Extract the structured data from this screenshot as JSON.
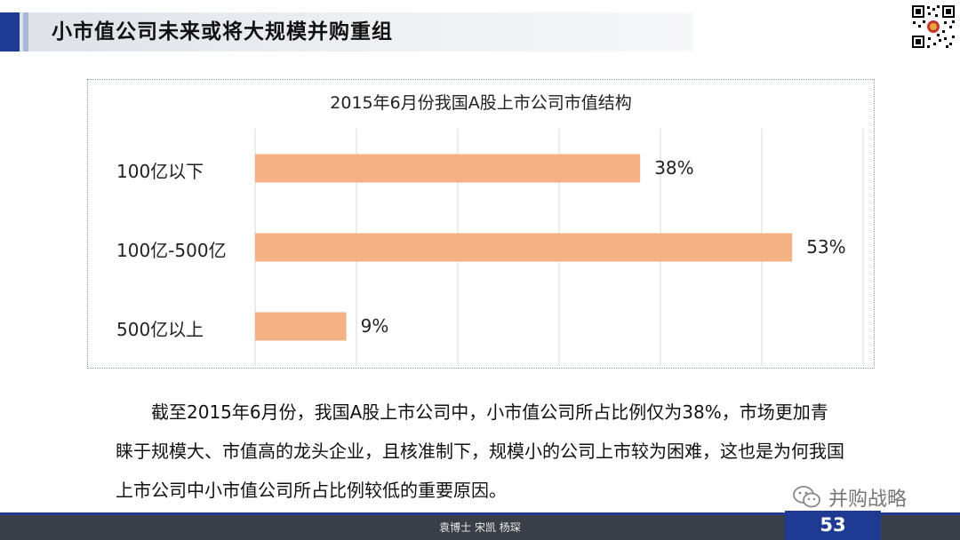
{
  "slide": {
    "title": "小市值公司未来或将大规模并购重组",
    "paragraph": "截至2015年6月份，我国A股上市公司中，小市值公司所占比例仅为38%，市场更加青睐于规模大、市值高的龙头企业，且核准制下，规模小的公司上市较为困难，这也是为何我国上市公司中小市值公司所占比例较低的重要原因。",
    "watermark": "并购战略",
    "footer_text": "袁博士 宋凯 杨琛",
    "page_number": "53"
  },
  "colors": {
    "bar": "#f4b183",
    "accent": "#1f3a93",
    "grid": "#d9d9d9"
  },
  "chart_data": {
    "type": "bar",
    "orientation": "horizontal",
    "title": "2015年6月份我国A股上市公司市值结构",
    "categories": [
      "100亿以下",
      "100亿-500亿",
      "500亿以上"
    ],
    "values": [
      38,
      53,
      9
    ],
    "value_labels": [
      "38%",
      "53%",
      "9%"
    ],
    "xlim": [
      0,
      60
    ],
    "grid": true,
    "legend": "none"
  }
}
